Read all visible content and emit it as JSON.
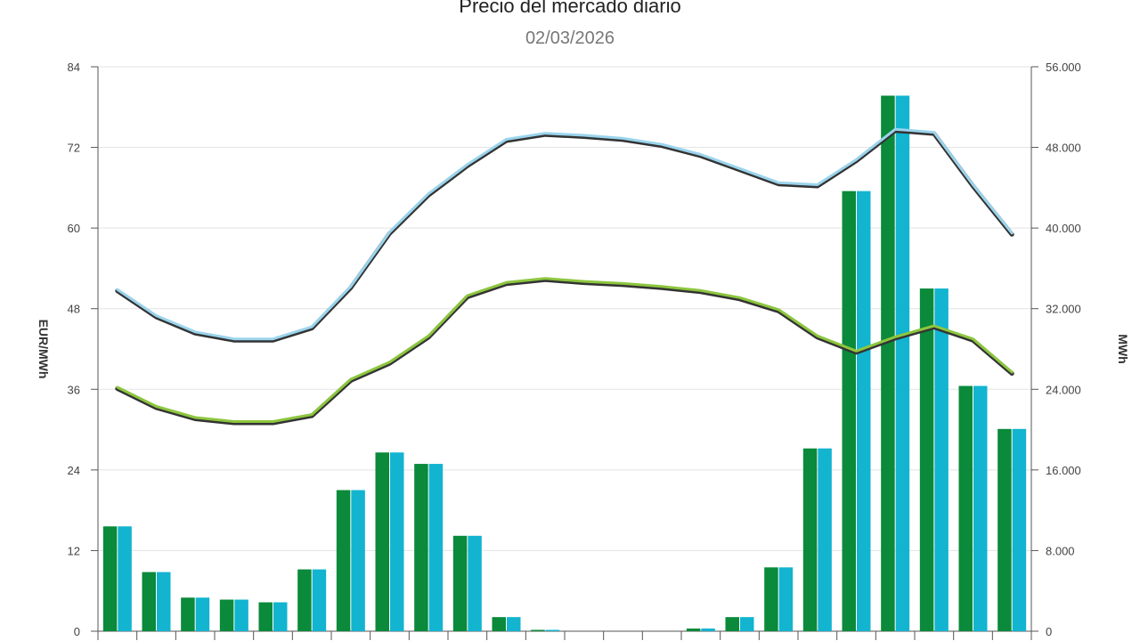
{
  "chart_data": {
    "type": "bar",
    "title": "Precio del mercado diario",
    "subtitle": "02/03/2026",
    "ylabel_left": "EUR/MWh",
    "ylabel_right": "MWh",
    "ylim_left": [
      0,
      84
    ],
    "ylim_right": [
      0,
      56000
    ],
    "yticks_left": [
      "0",
      "12",
      "24",
      "36",
      "48",
      "60",
      "72",
      "84"
    ],
    "yticks_right": [
      "0",
      "8.000",
      "16.000",
      "24.000",
      "32.000",
      "40.000",
      "48.000",
      "56.000"
    ],
    "grid": true,
    "hours": 24,
    "bar_series": [
      {
        "color": "#0a8a3a",
        "values": [
          15.6,
          8.8,
          5.0,
          4.7,
          4.3,
          9.2,
          21.0,
          26.6,
          24.9,
          14.2,
          2.1,
          0.2,
          0.0,
          0.0,
          0.0,
          0.4,
          2.1,
          9.5,
          27.2,
          65.5,
          79.7,
          51.0,
          36.5,
          30.1
        ]
      },
      {
        "color": "#12b4d0",
        "values": [
          15.6,
          8.8,
          5.0,
          4.7,
          4.3,
          9.2,
          21.0,
          26.6,
          24.9,
          14.2,
          2.1,
          0.2,
          0.0,
          0.0,
          0.0,
          0.4,
          2.1,
          9.5,
          27.2,
          65.5,
          79.7,
          51.0,
          36.5,
          30.1
        ]
      }
    ],
    "line_series": [
      {
        "axis": "right",
        "color": "#333333",
        "highlight": "#9ad4ec",
        "values": [
          33900,
          31300,
          29700,
          29000,
          29000,
          30200,
          34200,
          39600,
          43400,
          46300,
          48800,
          49400,
          49200,
          48900,
          48300,
          47300,
          45900,
          44500,
          44300,
          46800,
          49800,
          49500,
          44300,
          39500
        ]
      },
      {
        "axis": "right",
        "color": "#333333",
        "highlight": "#8cc63e",
        "values": [
          24200,
          22300,
          21200,
          20800,
          20800,
          21500,
          25000,
          26700,
          29300,
          33300,
          34600,
          35000,
          34700,
          34500,
          34200,
          33800,
          33100,
          31900,
          29300,
          27800,
          29200,
          30300,
          29000,
          25700
        ]
      }
    ]
  }
}
